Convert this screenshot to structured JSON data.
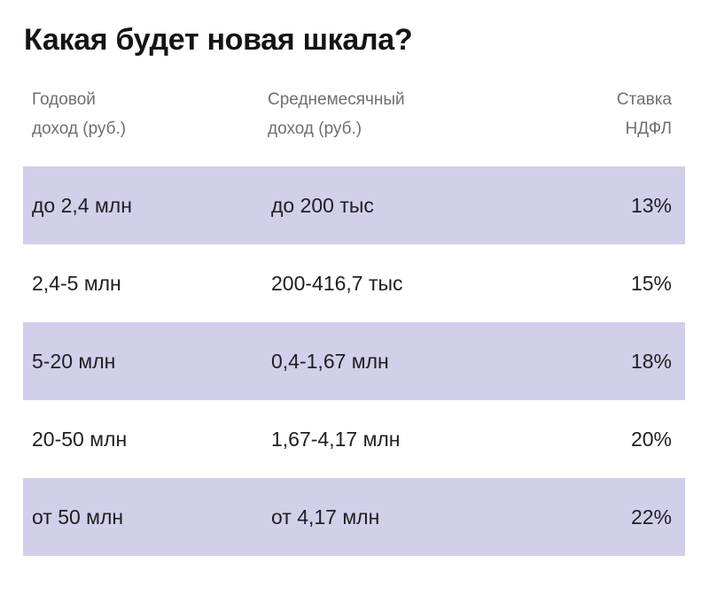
{
  "chart_data": {
    "type": "table",
    "title": "Какая будет новая шкала?",
    "columns": [
      [
        "Годовой",
        "доход (руб.)"
      ],
      [
        "Среднемесячный",
        "доход (руб.)"
      ],
      [
        "Ставка",
        "НДФЛ"
      ]
    ],
    "rows": [
      {
        "annual": "до 2,4 млн",
        "monthly": "до 200 тыс",
        "rate": "13%"
      },
      {
        "annual": "2,4-5 млн",
        "monthly": "200-416,7 тыс",
        "rate": "15%"
      },
      {
        "annual": "5-20 млн",
        "monthly": "0,4-1,67 млн",
        "rate": "18%"
      },
      {
        "annual": "20-50 млн",
        "monthly": "1,67-4,17 млн",
        "rate": "20%"
      },
      {
        "annual": "от 50 млн",
        "monthly": "от 4,17 млн",
        "rate": "22%"
      }
    ],
    "row_stripe_color": "#d2cfeb",
    "header_text_color": "#6f6f6f"
  }
}
